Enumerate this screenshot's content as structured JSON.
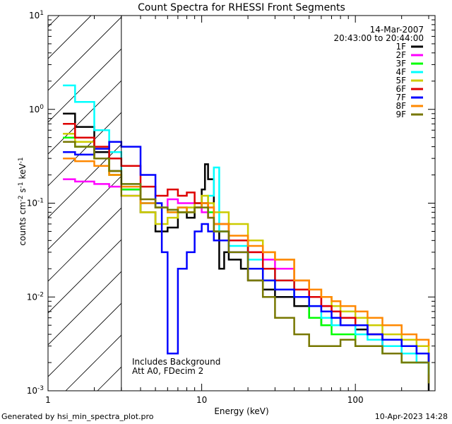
{
  "chart_data": {
    "type": "line",
    "title": "Count Spectra for RHESSI Front Segments",
    "xlabel": "Energy (keV)",
    "ylabel": "counts cm-2 s-1 keV-1",
    "xscale": "log",
    "yscale": "log",
    "xlim": [
      1,
      330
    ],
    "ylim": [
      0.001,
      10
    ],
    "xticks": [
      {
        "value": 1,
        "label": "1"
      },
      {
        "value": 10,
        "label": "10"
      },
      {
        "value": 100,
        "label": "100"
      }
    ],
    "yticks": [
      {
        "value": 0.001,
        "base": "10",
        "exp": "-3"
      },
      {
        "value": 0.01,
        "base": "10",
        "exp": "-2"
      },
      {
        "value": 0.1,
        "base": "10",
        "exp": "-1"
      },
      {
        "value": 1,
        "base": "10",
        "exp": "0"
      },
      {
        "value": 10,
        "base": "10",
        "exp": "1"
      }
    ],
    "date": "14-Mar-2007",
    "time_range": "20:43:00 to 20:44:00",
    "hatched_region": {
      "x_from": 1,
      "x_to": 3
    },
    "annotations": [
      "Includes Background",
      "Att A0, FDecim 2"
    ],
    "series": [
      {
        "name": "1F",
        "color": "#000000",
        "points": [
          [
            1.25,
            0.9
          ],
          [
            1.5,
            0.65
          ],
          [
            2,
            0.35
          ],
          [
            2.5,
            0.22
          ],
          [
            3,
            0.14
          ],
          [
            4,
            0.08
          ],
          [
            5,
            0.05
          ],
          [
            6,
            0.055
          ],
          [
            7,
            0.08
          ],
          [
            8,
            0.07
          ],
          [
            9,
            0.09
          ],
          [
            10,
            0.14
          ],
          [
            10.5,
            0.26
          ],
          [
            11,
            0.18
          ],
          [
            12,
            0.05
          ],
          [
            13,
            0.02
          ],
          [
            14,
            0.03
          ],
          [
            15,
            0.025
          ],
          [
            18,
            0.02
          ],
          [
            20,
            0.015
          ],
          [
            25,
            0.012
          ],
          [
            30,
            0.01
          ],
          [
            40,
            0.008
          ],
          [
            50,
            0.006
          ],
          [
            60,
            0.005
          ],
          [
            70,
            0.006
          ],
          [
            80,
            0.005
          ],
          [
            100,
            0.0045
          ],
          [
            120,
            0.004
          ],
          [
            150,
            0.003
          ],
          [
            200,
            0.003
          ],
          [
            250,
            0.0025
          ],
          [
            300,
            0.0009
          ]
        ]
      },
      {
        "name": "2F",
        "color": "#ff00ff",
        "points": [
          [
            1.25,
            0.18
          ],
          [
            1.5,
            0.17
          ],
          [
            2,
            0.16
          ],
          [
            2.5,
            0.15
          ],
          [
            3,
            0.12
          ],
          [
            4,
            0.1
          ],
          [
            5,
            0.09
          ],
          [
            6,
            0.11
          ],
          [
            7,
            0.1
          ],
          [
            8,
            0.1
          ],
          [
            9,
            0.09
          ],
          [
            10,
            0.08
          ],
          [
            11,
            0.07
          ],
          [
            12,
            0.05
          ],
          [
            15,
            0.04
          ],
          [
            20,
            0.03
          ],
          [
            25,
            0.025
          ],
          [
            30,
            0.02
          ],
          [
            40,
            0.015
          ],
          [
            50,
            0.01
          ],
          [
            60,
            0.008
          ],
          [
            70,
            0.007
          ],
          [
            80,
            0.006
          ],
          [
            100,
            0.005
          ],
          [
            120,
            0.004
          ],
          [
            150,
            0.003
          ],
          [
            200,
            0.0025
          ],
          [
            250,
            0.002
          ],
          [
            300,
            0.0015
          ]
        ]
      },
      {
        "name": "3F",
        "color": "#00ff00",
        "points": [
          [
            1.25,
            0.5
          ],
          [
            1.5,
            0.4
          ],
          [
            2,
            0.3
          ],
          [
            2.5,
            0.2
          ],
          [
            3,
            0.14
          ],
          [
            4,
            0.1
          ],
          [
            5,
            0.09
          ],
          [
            6,
            0.08
          ],
          [
            7,
            0.09
          ],
          [
            8,
            0.08
          ],
          [
            9,
            0.09
          ],
          [
            10,
            0.1
          ],
          [
            11,
            0.08
          ],
          [
            12,
            0.05
          ],
          [
            15,
            0.04
          ],
          [
            20,
            0.02
          ],
          [
            25,
            0.015
          ],
          [
            30,
            0.012
          ],
          [
            40,
            0.01
          ],
          [
            50,
            0.006
          ],
          [
            60,
            0.005
          ],
          [
            70,
            0.004
          ],
          [
            80,
            0.004
          ],
          [
            100,
            0.003
          ],
          [
            120,
            0.003
          ],
          [
            150,
            0.0025
          ],
          [
            200,
            0.002
          ],
          [
            250,
            0.002
          ],
          [
            300,
            0.0015
          ]
        ]
      },
      {
        "name": "4F",
        "color": "#00ffff",
        "points": [
          [
            1.25,
            1.8
          ],
          [
            1.5,
            1.2
          ],
          [
            2,
            0.6
          ],
          [
            2.5,
            0.35
          ],
          [
            3,
            0.16
          ],
          [
            4,
            0.1
          ],
          [
            5,
            0.09
          ],
          [
            6,
            0.085
          ],
          [
            7,
            0.08
          ],
          [
            8,
            0.09
          ],
          [
            9,
            0.1
          ],
          [
            10,
            0.1
          ],
          [
            11,
            0.12
          ],
          [
            12,
            0.24
          ],
          [
            13,
            0.05
          ],
          [
            15,
            0.035
          ],
          [
            20,
            0.025
          ],
          [
            25,
            0.02
          ],
          [
            30,
            0.015
          ],
          [
            40,
            0.01
          ],
          [
            50,
            0.008
          ],
          [
            60,
            0.006
          ],
          [
            70,
            0.005
          ],
          [
            80,
            0.005
          ],
          [
            100,
            0.004
          ],
          [
            120,
            0.0035
          ],
          [
            150,
            0.003
          ],
          [
            200,
            0.0025
          ],
          [
            250,
            0.002
          ],
          [
            300,
            0.0015
          ]
        ]
      },
      {
        "name": "5F",
        "color": "#cccc00",
        "points": [
          [
            1.25,
            0.55
          ],
          [
            1.5,
            0.45
          ],
          [
            2,
            0.3
          ],
          [
            2.5,
            0.2
          ],
          [
            3,
            0.12
          ],
          [
            4,
            0.08
          ],
          [
            5,
            0.06
          ],
          [
            6,
            0.07
          ],
          [
            7,
            0.08
          ],
          [
            8,
            0.09
          ],
          [
            9,
            0.1
          ],
          [
            10,
            0.12
          ],
          [
            11,
            0.1
          ],
          [
            12,
            0.08
          ],
          [
            15,
            0.06
          ],
          [
            20,
            0.04
          ],
          [
            25,
            0.03
          ],
          [
            30,
            0.025
          ],
          [
            40,
            0.015
          ],
          [
            50,
            0.012
          ],
          [
            60,
            0.01
          ],
          [
            70,
            0.008
          ],
          [
            80,
            0.007
          ],
          [
            100,
            0.006
          ],
          [
            120,
            0.005
          ],
          [
            150,
            0.004
          ],
          [
            200,
            0.0035
          ],
          [
            250,
            0.003
          ],
          [
            300,
            0.0025
          ]
        ]
      },
      {
        "name": "6F",
        "color": "#dd0000",
        "points": [
          [
            1.25,
            0.7
          ],
          [
            1.5,
            0.5
          ],
          [
            2,
            0.4
          ],
          [
            2.5,
            0.3
          ],
          [
            3,
            0.25
          ],
          [
            4,
            0.15
          ],
          [
            5,
            0.12
          ],
          [
            6,
            0.14
          ],
          [
            7,
            0.12
          ],
          [
            8,
            0.13
          ],
          [
            9,
            0.1
          ],
          [
            10,
            0.1
          ],
          [
            11,
            0.09
          ],
          [
            12,
            0.06
          ],
          [
            15,
            0.04
          ],
          [
            20,
            0.03
          ],
          [
            25,
            0.02
          ],
          [
            30,
            0.015
          ],
          [
            40,
            0.012
          ],
          [
            50,
            0.01
          ],
          [
            60,
            0.008
          ],
          [
            70,
            0.007
          ],
          [
            80,
            0.006
          ],
          [
            100,
            0.005
          ],
          [
            120,
            0.004
          ],
          [
            150,
            0.0035
          ],
          [
            200,
            0.003
          ],
          [
            250,
            0.0025
          ],
          [
            300,
            0.002
          ]
        ]
      },
      {
        "name": "7F",
        "color": "#0000ff",
        "points": [
          [
            1.25,
            0.35
          ],
          [
            1.5,
            0.33
          ],
          [
            2,
            0.38
          ],
          [
            2.5,
            0.45
          ],
          [
            3,
            0.4
          ],
          [
            4,
            0.2
          ],
          [
            5,
            0.1
          ],
          [
            5.5,
            0.03
          ],
          [
            6,
            0.0025
          ],
          [
            7,
            0.02
          ],
          [
            8,
            0.03
          ],
          [
            9,
            0.05
          ],
          [
            10,
            0.06
          ],
          [
            11,
            0.05
          ],
          [
            12,
            0.04
          ],
          [
            15,
            0.03
          ],
          [
            20,
            0.02
          ],
          [
            25,
            0.015
          ],
          [
            30,
            0.012
          ],
          [
            40,
            0.01
          ],
          [
            50,
            0.008
          ],
          [
            60,
            0.007
          ],
          [
            70,
            0.006
          ],
          [
            80,
            0.005
          ],
          [
            100,
            0.005
          ],
          [
            120,
            0.004
          ],
          [
            150,
            0.0035
          ],
          [
            200,
            0.003
          ],
          [
            250,
            0.0025
          ],
          [
            300,
            0.002
          ]
        ]
      },
      {
        "name": "8F",
        "color": "#ff8800",
        "points": [
          [
            1.25,
            0.3
          ],
          [
            1.5,
            0.28
          ],
          [
            2,
            0.25
          ],
          [
            2.5,
            0.2
          ],
          [
            3,
            0.15
          ],
          [
            4,
            0.1
          ],
          [
            5,
            0.09
          ],
          [
            6,
            0.08
          ],
          [
            7,
            0.09
          ],
          [
            8,
            0.08
          ],
          [
            9,
            0.09
          ],
          [
            10,
            0.1
          ],
          [
            11,
            0.09
          ],
          [
            12,
            0.06
          ],
          [
            15,
            0.045
          ],
          [
            20,
            0.035
          ],
          [
            25,
            0.03
          ],
          [
            30,
            0.025
          ],
          [
            40,
            0.015
          ],
          [
            50,
            0.012
          ],
          [
            60,
            0.01
          ],
          [
            70,
            0.009
          ],
          [
            80,
            0.008
          ],
          [
            100,
            0.007
          ],
          [
            120,
            0.006
          ],
          [
            150,
            0.005
          ],
          [
            200,
            0.004
          ],
          [
            250,
            0.0035
          ],
          [
            300,
            0.003
          ]
        ]
      },
      {
        "name": "9F",
        "color": "#777700",
        "points": [
          [
            1.25,
            0.45
          ],
          [
            1.5,
            0.4
          ],
          [
            2,
            0.3
          ],
          [
            2.5,
            0.22
          ],
          [
            3,
            0.16
          ],
          [
            4,
            0.11
          ],
          [
            5,
            0.09
          ],
          [
            6,
            0.085
          ],
          [
            7,
            0.08
          ],
          [
            8,
            0.08
          ],
          [
            9,
            0.09
          ],
          [
            10,
            0.09
          ],
          [
            11,
            0.07
          ],
          [
            12,
            0.05
          ],
          [
            15,
            0.03
          ],
          [
            20,
            0.015
          ],
          [
            25,
            0.01
          ],
          [
            30,
            0.006
          ],
          [
            40,
            0.004
          ],
          [
            50,
            0.003
          ],
          [
            60,
            0.003
          ],
          [
            70,
            0.003
          ],
          [
            80,
            0.0035
          ],
          [
            100,
            0.003
          ],
          [
            120,
            0.003
          ],
          [
            150,
            0.0025
          ],
          [
            200,
            0.002
          ],
          [
            250,
            0.002
          ],
          [
            300,
            0.0012
          ]
        ]
      }
    ]
  },
  "footer": {
    "left": "Generated by hsi_min_spectra_plot.pro",
    "right": "10-Apr-2023 14:28"
  }
}
